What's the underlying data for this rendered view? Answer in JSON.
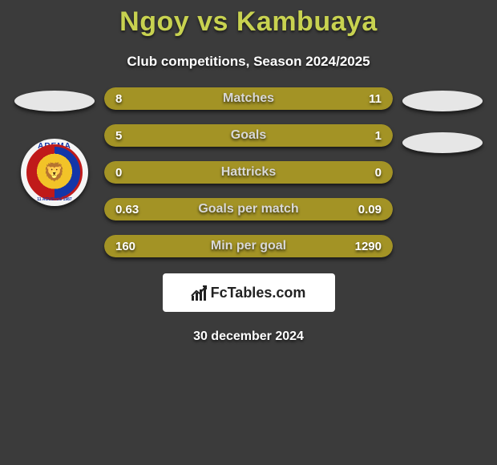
{
  "title": "Ngoy vs Kambuaya",
  "subtitle": "Club competitions, Season 2024/2025",
  "date": "30 december 2024",
  "fctables_label": "FcTables.com",
  "colors": {
    "left": "#a39325",
    "right": "#a39325",
    "track": "#3a3a3a",
    "left2": "#a39325",
    "right2": "#a39325"
  },
  "left_badge": {
    "top_text": "AREMA",
    "bottom_text": "11 AGUSTUS 1987"
  },
  "bars": [
    {
      "label": "Matches",
      "left_val": "8",
      "right_val": "11",
      "left_pct": 42.1,
      "right_pct": 57.9
    },
    {
      "label": "Goals",
      "left_val": "5",
      "right_val": "1",
      "left_pct": 83.3,
      "right_pct": 16.7
    },
    {
      "label": "Hattricks",
      "left_val": "0",
      "right_val": "0",
      "left_pct": 50.0,
      "right_pct": 50.0
    },
    {
      "label": "Goals per match",
      "left_val": "0.63",
      "right_val": "0.09",
      "left_pct": 87.5,
      "right_pct": 12.5
    },
    {
      "label": "Min per goal",
      "left_val": "160",
      "right_val": "1290",
      "left_pct": 11.0,
      "right_pct": 89.0
    }
  ]
}
